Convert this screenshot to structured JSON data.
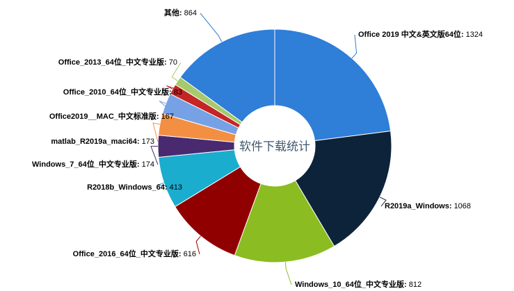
{
  "chart_data": {
    "type": "pie",
    "title": "软件下载统计",
    "categories": [
      "Office 2019 中文&英文版64位",
      "R2019a_Windows",
      "Windows_10_64位_中文专业版",
      "Office_2016_64位_中文专业版",
      "R2018b_Windows_64",
      "Windows_7_64位_中文专业版",
      "matlab_R2019a_maci64",
      "Office2019__MAC_中文标准版",
      "Office_2010_64位_中文专业版",
      "Office_2013_64位_中文专业版",
      "其他"
    ],
    "values": [
      1324,
      1068,
      812,
      616,
      413,
      174,
      173,
      167,
      83,
      70,
      864
    ],
    "colors": [
      "#2f7ed8",
      "#0d233a",
      "#8bbc21",
      "#910000",
      "#1aadce",
      "#492970",
      "#f28f43",
      "#77a1e5",
      "#c42525",
      "#a6c96a",
      "#2f7ed8"
    ]
  }
}
